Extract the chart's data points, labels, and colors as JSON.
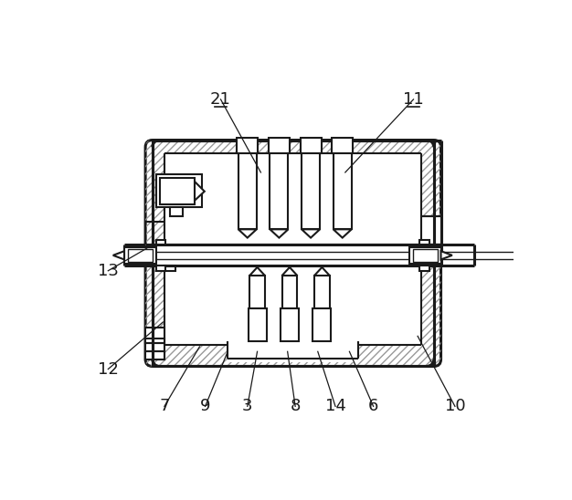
{
  "bg_color": "#ffffff",
  "line_color": "#1a1a1a",
  "lw_heavy": 2.2,
  "lw_med": 1.5,
  "lw_light": 1.0,
  "label_fontsize": 13,
  "annotations": [
    [
      "12",
      50,
      108,
      128,
      175
    ],
    [
      "7",
      130,
      55,
      180,
      140
    ],
    [
      "9",
      188,
      55,
      220,
      133
    ],
    [
      "3",
      248,
      55,
      262,
      133
    ],
    [
      "8",
      316,
      55,
      305,
      133
    ],
    [
      "14",
      373,
      55,
      348,
      133
    ],
    [
      "6",
      427,
      55,
      393,
      133
    ],
    [
      "10",
      543,
      55,
      490,
      155
    ],
    [
      "13",
      50,
      248,
      105,
      280
    ],
    [
      "21",
      210,
      492,
      267,
      388
    ],
    [
      "11",
      484,
      492,
      387,
      388
    ]
  ]
}
